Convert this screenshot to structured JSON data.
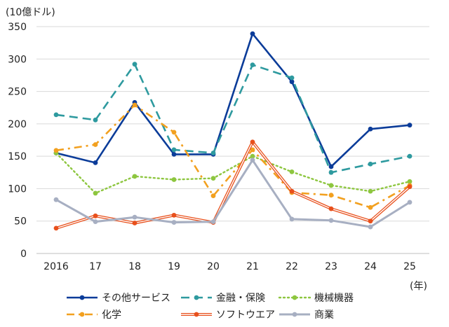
{
  "chart_data": {
    "type": "line",
    "ylabel": "(10億ドル)",
    "xlabel": "(年)",
    "categories": [
      "2016",
      "17",
      "18",
      "19",
      "20",
      "21",
      "22",
      "23",
      "24",
      "25"
    ],
    "ylim": [
      0,
      350
    ],
    "yticks": [
      0,
      50,
      100,
      150,
      200,
      250,
      300,
      350
    ],
    "grid": "horizontal",
    "legend_position": "bottom",
    "series": [
      {
        "name": "その他サービス",
        "values": [
          155,
          140,
          233,
          153,
          153,
          339,
          265,
          134,
          192,
          198
        ],
        "color": "#0b3c99",
        "style": "solid",
        "marker": "circle"
      },
      {
        "name": "金融・保険",
        "values": [
          214,
          206,
          292,
          160,
          155,
          291,
          271,
          125,
          138,
          150
        ],
        "color": "#2e9a9f",
        "style": "dash",
        "marker": "circle"
      },
      {
        "name": "機械機器",
        "values": [
          155,
          93,
          119,
          114,
          116,
          150,
          126,
          105,
          96,
          111
        ],
        "color": "#8dc63f",
        "style": "dot",
        "marker": "circle"
      },
      {
        "name": "化学",
        "values": [
          159,
          168,
          229,
          187,
          89,
          160,
          94,
          90,
          71,
          105
        ],
        "color": "#f2a01f",
        "style": "dashdot",
        "marker": "circle"
      },
      {
        "name": "ソフトウエア",
        "values": [
          39,
          58,
          47,
          59,
          48,
          172,
          96,
          69,
          50,
          103
        ],
        "color": "#e8501c",
        "style": "double",
        "marker": "circle"
      },
      {
        "name": "商業",
        "values": [
          83,
          49,
          56,
          48,
          49,
          144,
          53,
          51,
          41,
          79
        ],
        "color": "#a7afc2",
        "style": "solid-thick",
        "marker": "circle"
      }
    ]
  }
}
